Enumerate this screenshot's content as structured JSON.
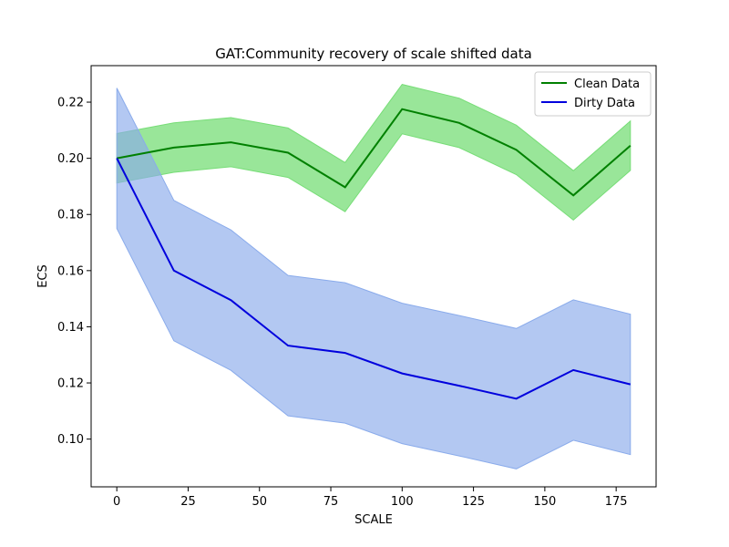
{
  "chart_data": {
    "type": "line",
    "title": "GAT:Community recovery of scale shifted data",
    "xlabel": "SCALE",
    "ylabel": "ECS",
    "xlim": [
      -9,
      189
    ],
    "ylim": [
      0.083,
      0.233
    ],
    "xticks": [
      0,
      25,
      50,
      75,
      100,
      125,
      150,
      175
    ],
    "yticks": [
      0.1,
      0.12,
      0.14,
      0.16,
      0.18,
      0.2,
      0.22
    ],
    "x": [
      0,
      20,
      40,
      60,
      80,
      100,
      120,
      140,
      160,
      180
    ],
    "legend_position": "top-right",
    "series": [
      {
        "name": "Clean Data",
        "line_color": "#008000",
        "band_color": "#77dd77",
        "values": [
          0.2,
          0.2038,
          0.2057,
          0.202,
          0.1897,
          0.2175,
          0.2126,
          0.203,
          0.1868,
          0.2045
        ],
        "lower": [
          0.1912,
          0.195,
          0.197,
          0.1932,
          0.181,
          0.2087,
          0.2038,
          0.1942,
          0.178,
          0.1957
        ],
        "upper": [
          0.2088,
          0.2126,
          0.2145,
          0.2108,
          0.1985,
          0.2263,
          0.2214,
          0.2118,
          0.1956,
          0.2133
        ]
      },
      {
        "name": "Dirty Data",
        "line_color": "#0000dd",
        "band_color": "#8aabeb",
        "values": [
          0.2,
          0.16,
          0.1495,
          0.1333,
          0.1307,
          0.1234,
          0.119,
          0.1144,
          0.1246,
          0.1195
        ],
        "lower": [
          0.175,
          0.135,
          0.1245,
          0.1083,
          0.1057,
          0.0984,
          0.094,
          0.0894,
          0.0996,
          0.0945
        ],
        "upper": [
          0.225,
          0.185,
          0.1745,
          0.1583,
          0.1557,
          0.1484,
          0.144,
          0.1394,
          0.1496,
          0.1445
        ]
      }
    ]
  }
}
